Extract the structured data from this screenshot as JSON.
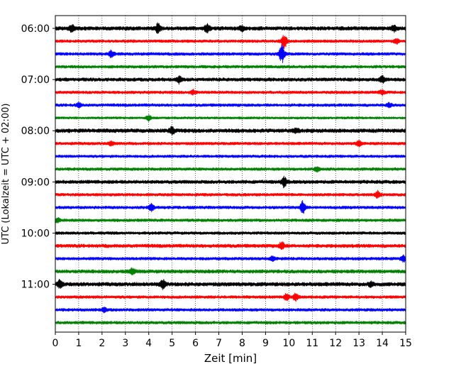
{
  "chart_data": {
    "type": "line",
    "title": "",
    "xlabel": "Zeit  [min]",
    "ylabel": "UTC (Lokalzeit = UTC + 02:00)",
    "xlim": [
      0,
      15
    ],
    "x_ticks": [
      "0",
      "1",
      "2",
      "3",
      "4",
      "5",
      "6",
      "7",
      "8",
      "9",
      "10",
      "11",
      "12",
      "13",
      "14",
      "15"
    ],
    "y_tick_labels": [
      "06:00",
      "07:00",
      "08:00",
      "09:00",
      "10:00",
      "11:00"
    ],
    "grid_x": true,
    "grid_style": "dotted",
    "trace_colors": [
      "#000000",
      "#ff0000",
      "#0000ff",
      "#008000"
    ],
    "series": [
      {
        "start": "06:00",
        "color": "#000000",
        "amplitude": 2.0,
        "events": [
          {
            "t": 0.7,
            "a": 5
          },
          {
            "t": 4.4,
            "a": 6
          },
          {
            "t": 6.5,
            "a": 6
          },
          {
            "t": 8.0,
            "a": 3
          },
          {
            "t": 14.5,
            "a": 4
          }
        ]
      },
      {
        "start": "06:15",
        "color": "#ff0000",
        "amplitude": 1.5,
        "events": [
          {
            "t": 9.8,
            "a": 10
          },
          {
            "t": 14.6,
            "a": 3
          }
        ]
      },
      {
        "start": "06:30",
        "color": "#0000ff",
        "amplitude": 1.5,
        "events": [
          {
            "t": 2.4,
            "a": 5
          },
          {
            "t": 9.7,
            "a": 12
          }
        ]
      },
      {
        "start": "06:45",
        "color": "#008000",
        "amplitude": 1.5,
        "events": []
      },
      {
        "start": "07:00",
        "color": "#000000",
        "amplitude": 1.8,
        "events": [
          {
            "t": 5.3,
            "a": 5
          },
          {
            "t": 14.0,
            "a": 4
          }
        ]
      },
      {
        "start": "07:15",
        "color": "#ff0000",
        "amplitude": 1.5,
        "events": [
          {
            "t": 5.9,
            "a": 3
          },
          {
            "t": 14.0,
            "a": 3
          }
        ]
      },
      {
        "start": "07:30",
        "color": "#0000ff",
        "amplitude": 1.5,
        "events": [
          {
            "t": 1.0,
            "a": 3
          },
          {
            "t": 14.3,
            "a": 3
          }
        ]
      },
      {
        "start": "07:45",
        "color": "#008000",
        "amplitude": 1.2,
        "events": [
          {
            "t": 4.0,
            "a": 4
          }
        ]
      },
      {
        "start": "08:00",
        "color": "#000000",
        "amplitude": 2.0,
        "events": [
          {
            "t": 5.0,
            "a": 5
          },
          {
            "t": 10.3,
            "a": 3
          }
        ]
      },
      {
        "start": "08:15",
        "color": "#ff0000",
        "amplitude": 1.5,
        "events": [
          {
            "t": 2.4,
            "a": 3
          },
          {
            "t": 13.0,
            "a": 4
          }
        ]
      },
      {
        "start": "08:30",
        "color": "#0000ff",
        "amplitude": 1.4,
        "events": []
      },
      {
        "start": "08:45",
        "color": "#008000",
        "amplitude": 1.5,
        "events": [
          {
            "t": 11.2,
            "a": 3
          }
        ]
      },
      {
        "start": "09:00",
        "color": "#000000",
        "amplitude": 1.8,
        "events": [
          {
            "t": 9.8,
            "a": 7
          }
        ]
      },
      {
        "start": "09:15",
        "color": "#ff0000",
        "amplitude": 1.5,
        "events": [
          {
            "t": 13.8,
            "a": 5
          }
        ]
      },
      {
        "start": "09:30",
        "color": "#0000ff",
        "amplitude": 1.5,
        "events": [
          {
            "t": 4.1,
            "a": 5
          },
          {
            "t": 10.6,
            "a": 9
          }
        ]
      },
      {
        "start": "09:45",
        "color": "#008000",
        "amplitude": 1.5,
        "events": [
          {
            "t": 0.1,
            "a": 3
          }
        ]
      },
      {
        "start": "10:00",
        "color": "#000000",
        "amplitude": 1.5,
        "events": []
      },
      {
        "start": "10:15",
        "color": "#ff0000",
        "amplitude": 1.8,
        "events": [
          {
            "t": 9.7,
            "a": 5
          }
        ]
      },
      {
        "start": "10:30",
        "color": "#0000ff",
        "amplitude": 1.5,
        "events": [
          {
            "t": 9.3,
            "a": 3
          },
          {
            "t": 14.9,
            "a": 4
          }
        ]
      },
      {
        "start": "10:45",
        "color": "#008000",
        "amplitude": 1.8,
        "events": [
          {
            "t": 3.3,
            "a": 4
          }
        ]
      },
      {
        "start": "11:00",
        "color": "#000000",
        "amplitude": 2.0,
        "events": [
          {
            "t": 0.2,
            "a": 5
          },
          {
            "t": 4.6,
            "a": 6
          },
          {
            "t": 13.5,
            "a": 3
          }
        ]
      },
      {
        "start": "11:15",
        "color": "#ff0000",
        "amplitude": 1.5,
        "events": [
          {
            "t": 9.9,
            "a": 4
          },
          {
            "t": 10.3,
            "a": 5
          }
        ]
      },
      {
        "start": "11:30",
        "color": "#0000ff",
        "amplitude": 1.5,
        "events": [
          {
            "t": 2.1,
            "a": 3
          }
        ]
      },
      {
        "start": "11:45",
        "color": "#008000",
        "amplitude": 1.5,
        "events": []
      }
    ]
  }
}
